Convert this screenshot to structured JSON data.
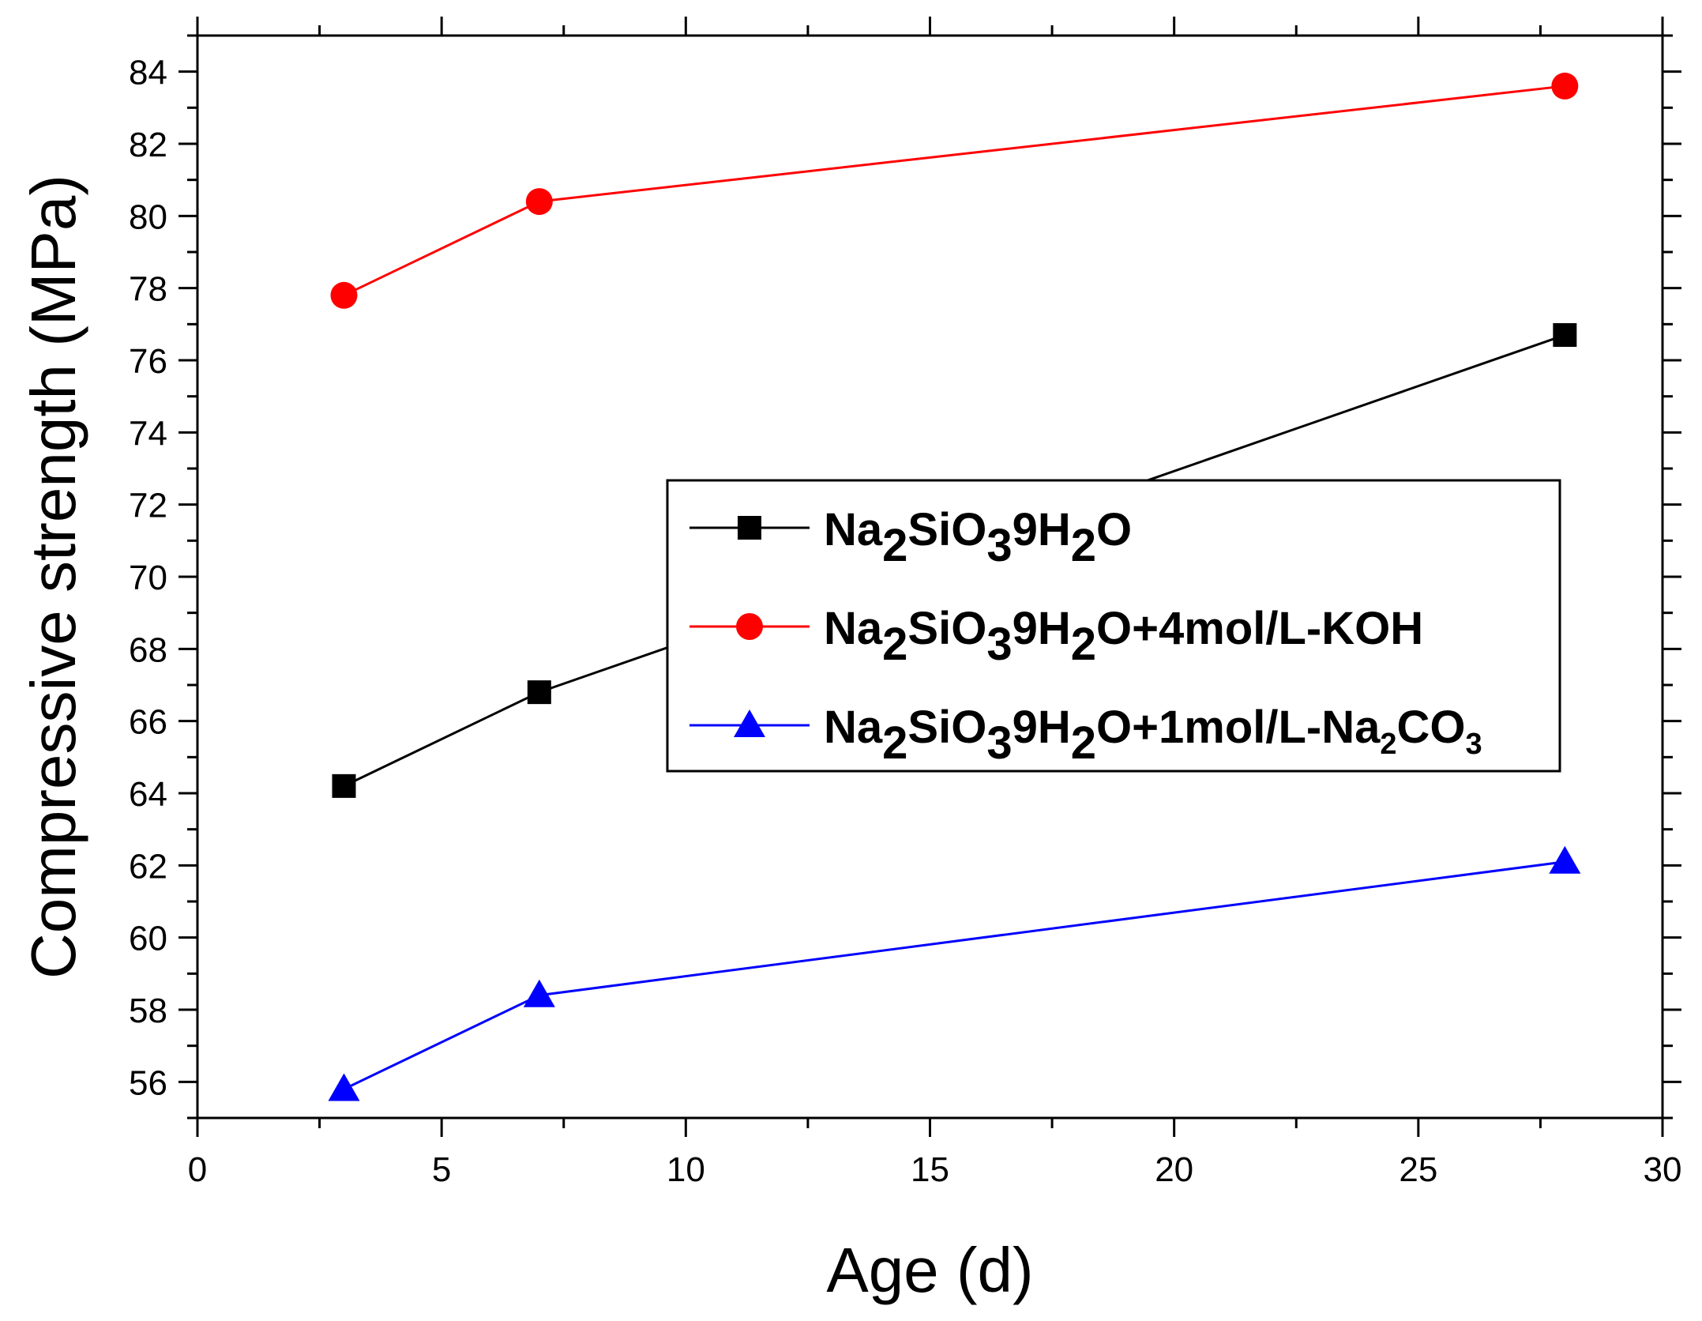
{
  "chart_data": {
    "type": "line",
    "title": "",
    "xlabel": "Age  (d)",
    "ylabel": "Compressive strength (MPa)",
    "xlim": [
      0,
      30
    ],
    "ylim": [
      55,
      85
    ],
    "xticks": [
      0,
      5,
      10,
      15,
      20,
      25,
      30
    ],
    "yticks": [
      56,
      58,
      60,
      62,
      64,
      66,
      68,
      70,
      72,
      74,
      76,
      78,
      80,
      82,
      84
    ],
    "grid": false,
    "legend_position": "center-right",
    "series": [
      {
        "name": "Na2SiO39H2O",
        "legend_parts": [
          {
            "t": "Na"
          },
          {
            "t": "2",
            "sub": true
          },
          {
            "t": "SiO"
          },
          {
            "t": "3",
            "sub": true
          },
          {
            "t": "9H"
          },
          {
            "t": "2",
            "sub": true
          },
          {
            "t": "O"
          }
        ],
        "color": "#000000",
        "marker": "square",
        "x": [
          3,
          7,
          28
        ],
        "y": [
          64.2,
          66.8,
          76.7
        ]
      },
      {
        "name": "Na2SiO39H2O+4mol/L-KOH",
        "legend_parts": [
          {
            "t": "Na"
          },
          {
            "t": "2",
            "sub": true
          },
          {
            "t": "SiO"
          },
          {
            "t": "3",
            "sub": true
          },
          {
            "t": "9H"
          },
          {
            "t": "2",
            "sub": true
          },
          {
            "t": "O+4mol/L-KOH"
          }
        ],
        "color": "#ff0000",
        "marker": "circle",
        "x": [
          3,
          7,
          28
        ],
        "y": [
          77.8,
          80.4,
          83.6
        ]
      },
      {
        "name": "Na2SiO39H2O+1mol/L-Na2CO3",
        "legend_parts": [
          {
            "t": "Na"
          },
          {
            "t": "2",
            "sub": true
          },
          {
            "t": "SiO"
          },
          {
            "t": "3",
            "sub": true
          },
          {
            "t": "9H"
          },
          {
            "t": "2",
            "sub": true
          },
          {
            "t": "O+1mol/L-Na"
          },
          {
            "t": "2",
            "sub": true,
            "small": true
          },
          {
            "t": "CO"
          },
          {
            "t": "3",
            "sub": true,
            "small": true
          }
        ],
        "color": "#0000ff",
        "marker": "triangle",
        "x": [
          3,
          7,
          28
        ],
        "y": [
          55.8,
          58.4,
          62.1
        ]
      }
    ]
  }
}
